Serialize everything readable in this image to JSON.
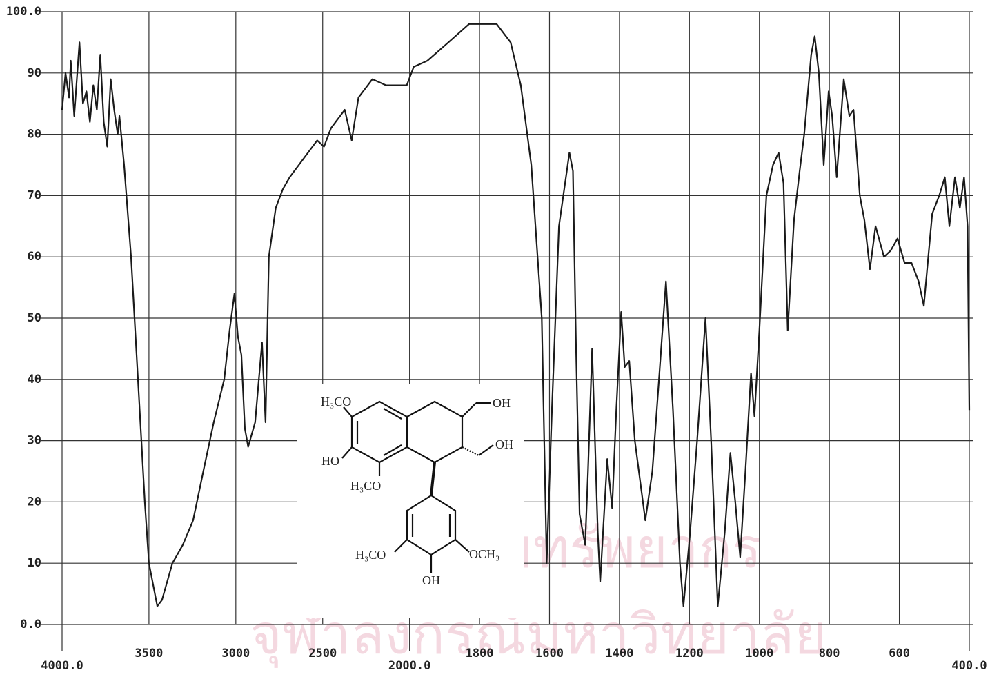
{
  "chart_data": {
    "type": "line",
    "xlim": [
      4000,
      400
    ],
    "ylim": [
      0,
      100
    ],
    "xticks": [
      {
        "value": 4000,
        "label": "4000.0"
      },
      3500,
      3000,
      2500,
      {
        "value": 2000,
        "label": "2000.0"
      },
      1800,
      1600,
      1400,
      1200,
      1000,
      800,
      600,
      {
        "value": 400,
        "label": "400.0"
      }
    ],
    "yticks": [
      {
        "value": 0,
        "label": "0.0"
      },
      10,
      20,
      30,
      40,
      50,
      60,
      70,
      80,
      90,
      {
        "value": 100,
        "label": "100.0"
      }
    ],
    "grid": true,
    "color": "#1a1a1a",
    "x": [
      4000,
      3980,
      3960,
      3950,
      3930,
      3915,
      3900,
      3880,
      3860,
      3840,
      3820,
      3800,
      3780,
      3760,
      3740,
      3720,
      3700,
      3680,
      3670,
      3643,
      3603,
      3563,
      3524,
      3500,
      3452,
      3425,
      3365,
      3305,
      3246,
      3187,
      3127,
      3067,
      3036,
      3008,
      2988,
      2968,
      2948,
      2929,
      2889,
      2849,
      2829,
      2810,
      2770,
      2730,
      2690,
      2611,
      2532,
      2492,
      2452,
      2373,
      2333,
      2294,
      2214,
      2135,
      2016,
      1988,
      1949,
      1889,
      1830,
      1751,
      1711,
      1682,
      1652,
      1622,
      1608,
      1593,
      1573,
      1543,
      1533,
      1524,
      1514,
      1498,
      1490,
      1478,
      1462,
      1455,
      1435,
      1421,
      1409,
      1395,
      1385,
      1372,
      1356,
      1326,
      1306,
      1287,
      1267,
      1247,
      1227,
      1217,
      1198,
      1178,
      1154,
      1138,
      1119,
      1099,
      1083,
      1069,
      1055,
      1040,
      1024,
      1014,
      1000,
      980,
      961,
      945,
      931,
      919,
      901,
      885,
      872,
      852,
      842,
      830,
      816,
      802,
      792,
      779,
      759,
      743,
      731,
      713,
      700,
      684,
      668,
      644,
      625,
      605,
      585,
      565,
      545,
      530,
      506,
      486,
      470,
      457,
      441,
      427,
      415,
      405,
      400
    ],
    "values": [
      84,
      90,
      86,
      92,
      83,
      89,
      95,
      85,
      87,
      82,
      88,
      84,
      93,
      82,
      78,
      89,
      84,
      80,
      83,
      75,
      60,
      40,
      20,
      10,
      3,
      4,
      10,
      13,
      17,
      25,
      33,
      40,
      48,
      54,
      47,
      44,
      32,
      29,
      33,
      46,
      33,
      60,
      68,
      71,
      73,
      76,
      79,
      78,
      81,
      84,
      79,
      86,
      89,
      88,
      88,
      91,
      92,
      95,
      98,
      98,
      95,
      88,
      75,
      50,
      10,
      35,
      65,
      77,
      74,
      45,
      18,
      13,
      25,
      45,
      15,
      7,
      27,
      19,
      35,
      51,
      42,
      43,
      30,
      17,
      25,
      40,
      56,
      35,
      10,
      3,
      15,
      30,
      50,
      30,
      3,
      15,
      28,
      20,
      11,
      25,
      41,
      34,
      48,
      70,
      75,
      77,
      72,
      48,
      66,
      74,
      80,
      93,
      96,
      90,
      75,
      87,
      83,
      73,
      89,
      83,
      84,
      70,
      66,
      58,
      65,
      60,
      61,
      63,
      59,
      59,
      56,
      52,
      67,
      70,
      73,
      65,
      73,
      68,
      73,
      65,
      35
    ]
  },
  "structure": {
    "labels": [
      "H₃CO",
      "OH",
      "OH",
      "HO",
      "H₃CO",
      "H₃CO",
      "OCH₃",
      "OH"
    ]
  },
  "watermark": {
    "line1": "ศูนย์วิทยทรัพยากร",
    "line2": "จุฬาลงกรณ์มหาวิทยาลัย"
  }
}
